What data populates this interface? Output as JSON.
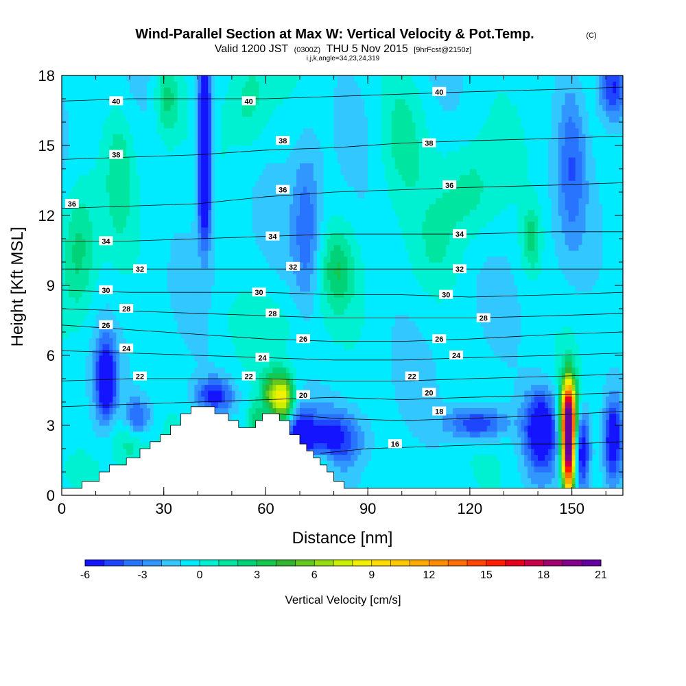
{
  "title": {
    "main": "Wind-Parallel Section at Max W: Vertical Velocity & Pot.Temp.",
    "copyright": "(C)",
    "valid_prefix": "Valid 1200 JST",
    "valid_utc": "(0300Z)",
    "valid_date": "THU 5 Nov 2015",
    "forecast": "[9hrFcst@2150z]",
    "indices": "i,j,k,angle=34,23,24,319"
  },
  "chart_data": {
    "type": "heatmap",
    "xlabel": "Distance [nm]",
    "ylabel": "Height [Kft MSL]",
    "xlim": [
      0,
      165
    ],
    "ylim": [
      0,
      18
    ],
    "xticks": [
      "0",
      "30",
      "60",
      "90",
      "120",
      "150"
    ],
    "yticks": [
      "0",
      "3",
      "6",
      "9",
      "12",
      "15",
      "18"
    ],
    "colorbar": {
      "title": "Vertical Velocity [cm/s]",
      "min": -6,
      "max": 21,
      "step": 1,
      "tick_labels": [
        "-6",
        "-3",
        "0",
        "3",
        "6",
        "9",
        "12",
        "15",
        "18",
        "21"
      ],
      "colors": [
        "#1414ff",
        "#1e46ff",
        "#2874ff",
        "#3296ff",
        "#32c8ff",
        "#00ebff",
        "#00f0d2",
        "#00e6a0",
        "#00d278",
        "#14c850",
        "#32b432",
        "#64c81e",
        "#96dc14",
        "#c8f000",
        "#f0f000",
        "#ffdc00",
        "#ffc800",
        "#ffaa00",
        "#ff8c00",
        "#ff6e00",
        "#ff4600",
        "#ff1e00",
        "#e6001e",
        "#c8004b",
        "#a0006e",
        "#82008c",
        "#6400a0"
      ]
    },
    "terrain_profile": [
      [
        0,
        0.3
      ],
      [
        6,
        0.3
      ],
      [
        6,
        0.6
      ],
      [
        11,
        0.6
      ],
      [
        11,
        1.0
      ],
      [
        14,
        1.0
      ],
      [
        14,
        1.3
      ],
      [
        19,
        1.3
      ],
      [
        19,
        1.6
      ],
      [
        23,
        1.6
      ],
      [
        23,
        2.0
      ],
      [
        26,
        2.0
      ],
      [
        26,
        2.3
      ],
      [
        29,
        2.3
      ],
      [
        29,
        2.6
      ],
      [
        32,
        2.6
      ],
      [
        32,
        3.0
      ],
      [
        35,
        3.0
      ],
      [
        35,
        3.5
      ],
      [
        38,
        3.5
      ],
      [
        38,
        3.8
      ],
      [
        45,
        3.8
      ],
      [
        45,
        3.5
      ],
      [
        49,
        3.5
      ],
      [
        49,
        3.2
      ],
      [
        52,
        3.2
      ],
      [
        52,
        2.9
      ],
      [
        57,
        2.9
      ],
      [
        57,
        3.2
      ],
      [
        59,
        3.2
      ],
      [
        59,
        3.5
      ],
      [
        64,
        3.5
      ],
      [
        64,
        3.2
      ],
      [
        67,
        3.2
      ],
      [
        67,
        2.6
      ],
      [
        70,
        2.6
      ],
      [
        70,
        2.2
      ],
      [
        72,
        2.2
      ],
      [
        72,
        1.9
      ],
      [
        74,
        1.9
      ],
      [
        74,
        1.6
      ],
      [
        76,
        1.6
      ],
      [
        76,
        1.3
      ],
      [
        78,
        1.3
      ],
      [
        78,
        1.0
      ],
      [
        80,
        1.0
      ],
      [
        80,
        0.6
      ],
      [
        83,
        0.6
      ],
      [
        83,
        0.3
      ],
      [
        165,
        0.3
      ]
    ],
    "theta_contours": [
      {
        "label": "16",
        "points": [
          [
            76,
            1.8
          ],
          [
            90,
            2.0
          ],
          [
            110,
            2.1
          ],
          [
            130,
            2.2
          ],
          [
            150,
            2.2
          ],
          [
            165,
            2.3
          ]
        ]
      },
      {
        "label": "18",
        "points": [
          [
            63,
            3.5
          ],
          [
            80,
            3.3
          ],
          [
            100,
            3.2
          ],
          [
            120,
            3.3
          ],
          [
            140,
            3.4
          ],
          [
            165,
            3.6
          ]
        ]
      },
      {
        "label": "20",
        "points": [
          [
            0,
            3.8
          ],
          [
            20,
            3.9
          ],
          [
            40,
            4.0
          ],
          [
            60,
            4.1
          ],
          [
            80,
            4.2
          ],
          [
            100,
            4.1
          ],
          [
            120,
            4.2
          ],
          [
            145,
            4.3
          ],
          [
            165,
            4.4
          ]
        ]
      },
      {
        "label": "22",
        "points": [
          [
            0,
            4.9
          ],
          [
            20,
            5.0
          ],
          [
            40,
            5.0
          ],
          [
            60,
            5.0
          ],
          [
            80,
            4.9
          ],
          [
            100,
            4.9
          ],
          [
            120,
            5.0
          ],
          [
            145,
            5.1
          ],
          [
            165,
            5.2
          ]
        ]
      },
      {
        "label": "24",
        "points": [
          [
            0,
            6.2
          ],
          [
            20,
            6.1
          ],
          [
            40,
            6.0
          ],
          [
            60,
            5.9
          ],
          [
            80,
            5.8
          ],
          [
            100,
            5.8
          ],
          [
            120,
            5.9
          ],
          [
            145,
            6.0
          ],
          [
            165,
            6.1
          ]
        ]
      },
      {
        "label": "26",
        "points": [
          [
            0,
            7.3
          ],
          [
            20,
            7.1
          ],
          [
            40,
            6.9
          ],
          [
            60,
            6.7
          ],
          [
            80,
            6.6
          ],
          [
            100,
            6.6
          ],
          [
            120,
            6.7
          ],
          [
            145,
            6.9
          ],
          [
            165,
            7.0
          ]
        ]
      },
      {
        "label": "28",
        "points": [
          [
            0,
            8.0
          ],
          [
            20,
            7.9
          ],
          [
            40,
            7.8
          ],
          [
            60,
            7.7
          ],
          [
            80,
            7.6
          ],
          [
            100,
            7.6
          ],
          [
            120,
            7.6
          ],
          [
            145,
            7.7
          ],
          [
            165,
            7.8
          ]
        ]
      },
      {
        "label": "30",
        "points": [
          [
            0,
            8.8
          ],
          [
            20,
            8.7
          ],
          [
            40,
            8.7
          ],
          [
            60,
            8.7
          ],
          [
            80,
            8.6
          ],
          [
            100,
            8.6
          ],
          [
            120,
            8.5
          ],
          [
            145,
            8.6
          ],
          [
            165,
            8.7
          ]
        ]
      },
      {
        "label": "32",
        "points": [
          [
            0,
            9.7
          ],
          [
            20,
            9.7
          ],
          [
            40,
            9.7
          ],
          [
            60,
            9.7
          ],
          [
            80,
            9.7
          ],
          [
            100,
            9.7
          ],
          [
            120,
            9.7
          ],
          [
            145,
            9.7
          ],
          [
            165,
            9.7
          ]
        ]
      },
      {
        "label": "34",
        "points": [
          [
            0,
            10.9
          ],
          [
            20,
            10.9
          ],
          [
            40,
            11.0
          ],
          [
            60,
            11.1
          ],
          [
            80,
            11.2
          ],
          [
            100,
            11.2
          ],
          [
            120,
            11.2
          ],
          [
            145,
            11.3
          ],
          [
            165,
            11.3
          ]
        ]
      },
      {
        "label": "36",
        "points": [
          [
            0,
            12.3
          ],
          [
            20,
            12.4
          ],
          [
            40,
            12.5
          ],
          [
            60,
            12.8
          ],
          [
            80,
            13.0
          ],
          [
            100,
            13.1
          ],
          [
            120,
            13.2
          ],
          [
            145,
            13.3
          ],
          [
            165,
            13.4
          ]
        ]
      },
      {
        "label": "38",
        "points": [
          [
            0,
            14.4
          ],
          [
            20,
            14.5
          ],
          [
            40,
            14.6
          ],
          [
            60,
            14.8
          ],
          [
            80,
            14.9
          ],
          [
            100,
            15.1
          ],
          [
            120,
            15.2
          ],
          [
            145,
            15.3
          ],
          [
            165,
            15.4
          ]
        ]
      },
      {
        "label": "40",
        "points": [
          [
            0,
            16.9
          ],
          [
            20,
            17.0
          ],
          [
            40,
            17.0
          ],
          [
            60,
            17.0
          ],
          [
            80,
            17.1
          ],
          [
            100,
            17.2
          ],
          [
            120,
            17.3
          ],
          [
            145,
            17.4
          ],
          [
            165,
            17.5
          ]
        ]
      }
    ],
    "contour_labels": [
      {
        "text": "40",
        "x": 16,
        "y": 16.9
      },
      {
        "text": "40",
        "x": 55,
        "y": 16.9
      },
      {
        "text": "40",
        "x": 111,
        "y": 17.3
      },
      {
        "text": "38",
        "x": 16,
        "y": 14.6
      },
      {
        "text": "38",
        "x": 65,
        "y": 15.2
      },
      {
        "text": "38",
        "x": 108,
        "y": 15.1
      },
      {
        "text": "36",
        "x": 3,
        "y": 12.5
      },
      {
        "text": "36",
        "x": 65,
        "y": 13.1
      },
      {
        "text": "36",
        "x": 114,
        "y": 13.3
      },
      {
        "text": "34",
        "x": 13,
        "y": 10.9
      },
      {
        "text": "34",
        "x": 62,
        "y": 11.1
      },
      {
        "text": "34",
        "x": 117,
        "y": 11.2
      },
      {
        "text": "32",
        "x": 23,
        "y": 9.7
      },
      {
        "text": "32",
        "x": 68,
        "y": 9.8
      },
      {
        "text": "32",
        "x": 117,
        "y": 9.7
      },
      {
        "text": "30",
        "x": 13,
        "y": 8.8
      },
      {
        "text": "30",
        "x": 58,
        "y": 8.7
      },
      {
        "text": "30",
        "x": 113,
        "y": 8.6
      },
      {
        "text": "28",
        "x": 19,
        "y": 8.0
      },
      {
        "text": "28",
        "x": 62,
        "y": 7.8
      },
      {
        "text": "28",
        "x": 124,
        "y": 7.6
      },
      {
        "text": "26",
        "x": 13,
        "y": 7.3
      },
      {
        "text": "26",
        "x": 71,
        "y": 6.7
      },
      {
        "text": "26",
        "x": 111,
        "y": 6.7
      },
      {
        "text": "24",
        "x": 19,
        "y": 6.3
      },
      {
        "text": "24",
        "x": 59,
        "y": 5.9
      },
      {
        "text": "24",
        "x": 116,
        "y": 6.0
      },
      {
        "text": "22",
        "x": 23,
        "y": 5.1
      },
      {
        "text": "22",
        "x": 55,
        "y": 5.1
      },
      {
        "text": "22",
        "x": 103,
        "y": 5.1
      },
      {
        "text": "20",
        "x": 71,
        "y": 4.3
      },
      {
        "text": "20",
        "x": 108,
        "y": 4.4
      },
      {
        "text": "18",
        "x": 111,
        "y": 3.6
      },
      {
        "text": "16",
        "x": 98,
        "y": 2.2
      }
    ],
    "w_features": [
      {
        "x": 149,
        "y": 2.2,
        "sx": 1.3,
        "sy": 1.6,
        "w": 22
      },
      {
        "x": 149,
        "y": 3.6,
        "sx": 1.8,
        "sy": 1.0,
        "w": 8
      },
      {
        "x": 65,
        "y": 4.2,
        "sx": 2.2,
        "sy": 0.7,
        "w": 9
      },
      {
        "x": 61,
        "y": 4.4,
        "sx": 1.8,
        "sy": 0.6,
        "w": 4
      },
      {
        "x": 57,
        "y": 3.2,
        "sx": 1.5,
        "sy": 0.5,
        "w": 3
      },
      {
        "x": 70,
        "y": 2.5,
        "sx": 3.0,
        "sy": 0.9,
        "w": -5
      },
      {
        "x": 79,
        "y": 2.4,
        "sx": 6.0,
        "sy": 0.8,
        "w": -5
      },
      {
        "x": 76,
        "y": 1.5,
        "sx": 3.5,
        "sy": 0.5,
        "w": 3
      },
      {
        "x": 122,
        "y": 3.1,
        "sx": 6.0,
        "sy": 0.5,
        "w": -5
      },
      {
        "x": 141,
        "y": 2.8,
        "sx": 3.5,
        "sy": 1.2,
        "w": -7
      },
      {
        "x": 153,
        "y": 2.0,
        "sx": 1.6,
        "sy": 1.2,
        "w": -6
      },
      {
        "x": 162,
        "y": 2.4,
        "sx": 1.8,
        "sy": 1.2,
        "w": -6
      },
      {
        "x": 13,
        "y": 5.0,
        "sx": 2.0,
        "sy": 1.2,
        "w": -7
      },
      {
        "x": 22,
        "y": 3.3,
        "sx": 3.0,
        "sy": 0.6,
        "w": -5
      },
      {
        "x": 45,
        "y": 4.3,
        "sx": 4.0,
        "sy": 0.5,
        "w": -5
      },
      {
        "x": 20,
        "y": 2.6,
        "sx": 4.0,
        "sy": 0.9,
        "w": 3
      },
      {
        "x": 5,
        "y": 1.2,
        "sx": 4.0,
        "sy": 0.5,
        "w": 1
      },
      {
        "x": 42,
        "y": 15.8,
        "sx": 1.6,
        "sy": 2.8,
        "w": -7
      },
      {
        "x": 42,
        "y": 12.5,
        "sx": 1.2,
        "sy": 1.2,
        "w": -4
      },
      {
        "x": 31,
        "y": 17.0,
        "sx": 2.5,
        "sy": 1.2,
        "w": 3
      },
      {
        "x": 5,
        "y": 10.5,
        "sx": 3.5,
        "sy": 2.0,
        "w": 3
      },
      {
        "x": 81,
        "y": 9.7,
        "sx": 3.5,
        "sy": 1.2,
        "w": 3
      },
      {
        "x": 138,
        "y": 11.0,
        "sx": 2.0,
        "sy": 1.0,
        "w": 3
      },
      {
        "x": 72,
        "y": 11.5,
        "sx": 3.0,
        "sy": 2.5,
        "w": -3
      },
      {
        "x": 150,
        "y": 14.5,
        "sx": 3.0,
        "sy": 2.5,
        "w": -3
      },
      {
        "x": 162,
        "y": 17.5,
        "sx": 3.0,
        "sy": 1.0,
        "w": -5
      },
      {
        "x": 100,
        "y": 15.5,
        "sx": 5.0,
        "sy": 2.0,
        "w": 2
      },
      {
        "x": 120,
        "y": 13.0,
        "sx": 6.0,
        "sy": 1.5,
        "w": 2
      },
      {
        "x": 17,
        "y": 14.0,
        "sx": 3.0,
        "sy": 2.0,
        "w": 2
      },
      {
        "x": 55,
        "y": 17.0,
        "sx": 4.0,
        "sy": 1.5,
        "w": 2
      },
      {
        "x": 110,
        "y": 10.5,
        "sx": 5.0,
        "sy": 1.5,
        "w": 1
      },
      {
        "x": 60,
        "y": 7.5,
        "sx": 10.0,
        "sy": 1.0,
        "w": 1
      }
    ]
  }
}
